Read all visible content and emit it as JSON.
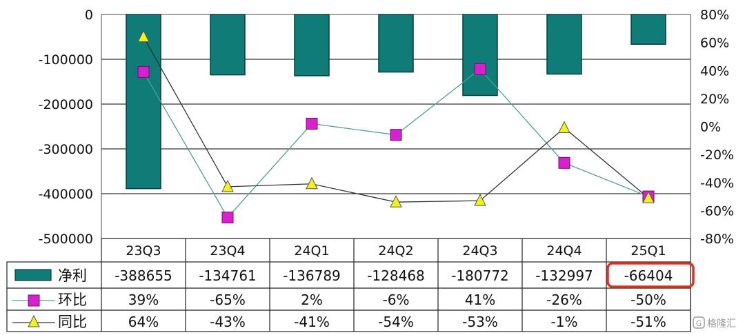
{
  "chart_data": {
    "type": "bar",
    "categories": [
      "23Q3",
      "23Q4",
      "24Q1",
      "24Q2",
      "24Q3",
      "24Q4",
      "25Q1"
    ],
    "series": [
      {
        "name": "净利",
        "kind": "bar",
        "axis": "left",
        "color": "#0f7c78",
        "values": [
          -388655,
          -134761,
          -136789,
          -128468,
          -180772,
          -132997,
          -66404
        ],
        "labels": [
          "-388655",
          "-134761",
          "-136789",
          "-128468",
          "-180772",
          "-132997",
          "-66404"
        ]
      },
      {
        "name": "环比",
        "kind": "line",
        "axis": "right",
        "marker": "square",
        "color": "#d91fd0",
        "values": [
          39,
          -65,
          2,
          -6,
          41,
          -26,
          -50
        ],
        "labels": [
          "39%",
          "-65%",
          "2%",
          "-6%",
          "41%",
          "-26%",
          "-50%"
        ]
      },
      {
        "name": "同比",
        "kind": "line",
        "axis": "right",
        "marker": "triangle",
        "color": "#f2f21a",
        "values": [
          64,
          -43,
          -41,
          -54,
          -53,
          -1,
          -51
        ],
        "labels": [
          "64%",
          "-43%",
          "-41%",
          "-54%",
          "-53%",
          "-1%",
          "-51%"
        ]
      }
    ],
    "yleft": {
      "lim": [
        -500000,
        0
      ],
      "ticks": [
        0,
        -100000,
        -200000,
        -300000,
        -400000,
        -500000
      ],
      "tick_labels": [
        "0",
        "-100000",
        "-200000",
        "-300000",
        "-400000",
        "-500000"
      ]
    },
    "yright": {
      "lim": [
        -80,
        80
      ],
      "ticks": [
        80,
        60,
        40,
        20,
        0,
        -20,
        -40,
        -60,
        -80
      ],
      "tick_labels": [
        "80%",
        "60%",
        "40%",
        "20%",
        "0%",
        "-20%",
        "-40%",
        "-60%",
        "-80%"
      ]
    },
    "highlight": {
      "series": 0,
      "index": 6,
      "color": "#e0301e"
    },
    "grid": true,
    "legend": "data-table-bottom"
  },
  "watermark": {
    "text": "格隆汇"
  }
}
